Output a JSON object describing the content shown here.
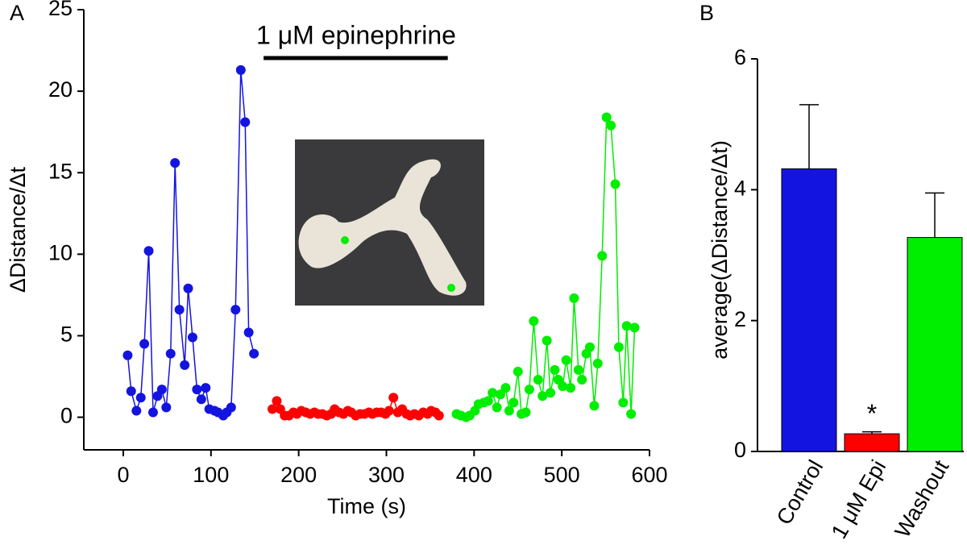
{
  "chart_data": [
    {
      "type": "line",
      "panel": "A",
      "ylabel": "ΔDistance/Δt",
      "xlabel": "Time (s)",
      "annotation": {
        "text": "1 μM epinephrine",
        "x_start": 160,
        "x_end": 370
      },
      "xlim": [
        -45,
        600
      ],
      "xticks": [
        0,
        100,
        200,
        300,
        400,
        500,
        600
      ],
      "ylim": [
        -2,
        25
      ],
      "yticks": [
        0,
        5,
        10,
        15,
        20,
        25
      ],
      "series": [
        {
          "color": "#1414e0",
          "x": [
            5,
            9,
            15,
            20,
            24,
            29,
            34,
            39,
            44,
            49,
            54,
            59,
            64,
            70,
            74,
            79,
            84,
            89,
            94,
            98,
            104,
            108,
            114,
            118,
            123,
            128,
            134,
            139,
            143,
            149
          ],
          "values": [
            3.8,
            1.6,
            0.4,
            1.2,
            4.5,
            10.2,
            0.3,
            1.3,
            1.7,
            0.6,
            3.9,
            15.6,
            6.6,
            3.2,
            7.9,
            4.9,
            1.7,
            1.1,
            1.8,
            0.5,
            0.4,
            0.3,
            0.1,
            0.3,
            0.6,
            6.6,
            21.3,
            18.1,
            5.2,
            3.9
          ]
        },
        {
          "color": "#ff0000",
          "x": [
            170,
            175,
            179,
            184,
            189,
            194,
            198,
            203,
            208,
            213,
            218,
            222,
            227,
            232,
            237,
            241,
            246,
            251,
            256,
            260,
            265,
            270,
            275,
            280,
            284,
            289,
            294,
            299,
            303,
            308,
            313,
            318,
            323,
            327,
            332,
            337,
            342,
            347,
            351,
            356,
            360
          ],
          "values": [
            0.5,
            1.0,
            0.5,
            0.1,
            0.1,
            0.3,
            0.2,
            0.4,
            0.3,
            0.2,
            0.3,
            0.2,
            0.2,
            0.1,
            0.2,
            0.5,
            0.3,
            0.2,
            0.4,
            0.3,
            0.1,
            0.2,
            0.2,
            0.3,
            0.2,
            0.3,
            0.3,
            0.2,
            0.4,
            1.2,
            0.3,
            0.5,
            0.2,
            0.1,
            0.2,
            0.1,
            0.3,
            0.2,
            0.4,
            0.3,
            0.1
          ]
        },
        {
          "color": "#00ee00",
          "x": [
            380,
            385,
            391,
            395,
            401,
            405,
            411,
            416,
            421,
            426,
            430,
            436,
            440,
            445,
            450,
            454,
            459,
            463,
            468,
            473,
            478,
            483,
            487,
            492,
            496,
            501,
            505,
            510,
            514,
            519,
            523,
            528,
            532,
            537,
            541,
            546,
            551,
            556,
            561,
            565,
            570,
            574,
            579,
            583
          ],
          "values": [
            0.2,
            0.1,
            0.0,
            0.1,
            0.4,
            0.8,
            0.9,
            1.0,
            1.5,
            0.6,
            1.4,
            1.8,
            0.4,
            0.9,
            2.8,
            0.2,
            0.3,
            1.7,
            5.9,
            2.3,
            1.3,
            4.7,
            1.5,
            2.9,
            2.3,
            1.9,
            3.5,
            1.8,
            7.3,
            2.9,
            2.3,
            3.9,
            4.3,
            0.7,
            3.3,
            9.9,
            18.4,
            17.9,
            14.3,
            4.3,
            0.9,
            5.6,
            0.2,
            5.5
          ]
        }
      ]
    },
    {
      "type": "bar",
      "panel": "B",
      "ylabel": "average(ΔDistance/Δt)",
      "categories": [
        "Control",
        "1 μM Epi",
        "Washout"
      ],
      "values": [
        4.32,
        0.27,
        3.27
      ],
      "errors": [
        0.98,
        0.03,
        0.68
      ],
      "colors": [
        "#1414e0",
        "#ff0000",
        "#00ee00"
      ],
      "annotation": "*",
      "ylim": [
        0,
        6
      ],
      "yticks": [
        0,
        2,
        4,
        6
      ]
    }
  ]
}
